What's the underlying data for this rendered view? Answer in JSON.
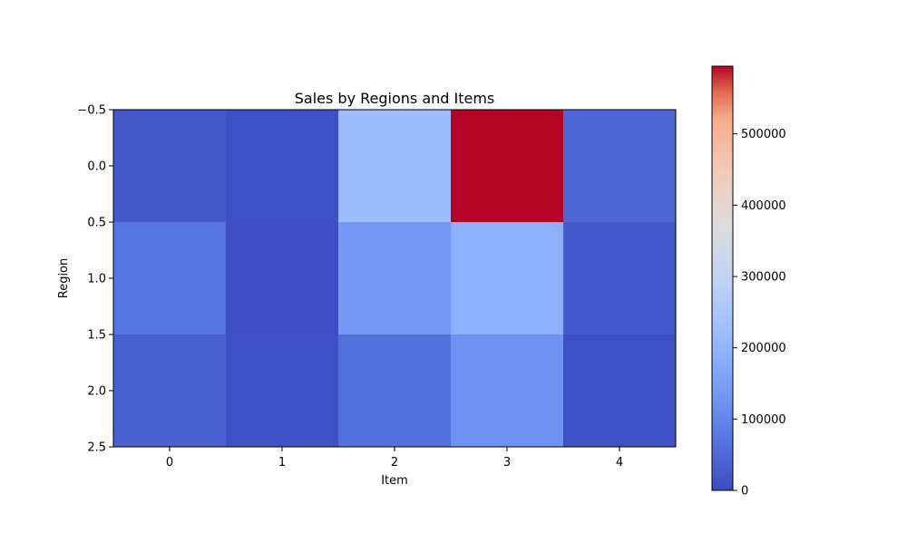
{
  "chart_data": {
    "type": "heatmap",
    "title": "Sales by Regions and Items",
    "xlabel": "Item",
    "ylabel": "Region",
    "x_ticks": [
      "0",
      "1",
      "2",
      "3",
      "4"
    ],
    "y_ticks": [
      "−0.5",
      "0.0",
      "0.5",
      "1.0",
      "1.5",
      "2.0",
      "2.5"
    ],
    "y_tick_values": [
      -0.5,
      0.0,
      0.5,
      1.0,
      1.5,
      2.0,
      2.5
    ],
    "xlim": [
      -0.5,
      4.5
    ],
    "ylim": [
      2.5,
      -0.5
    ],
    "values": [
      [
        20000,
        8000,
        220000,
        595000,
        45000
      ],
      [
        70000,
        5000,
        135000,
        190000,
        25000
      ],
      [
        35000,
        10000,
        60000,
        125000,
        8000
      ]
    ],
    "colormap": "coolwarm",
    "vmin": 0,
    "vmax": 595000,
    "colorbar": {
      "ticks": [
        0,
        100000,
        200000,
        300000,
        400000,
        500000
      ],
      "tick_labels": [
        "0",
        "100000",
        "200000",
        "300000",
        "400000",
        "500000"
      ]
    },
    "grid": false
  }
}
